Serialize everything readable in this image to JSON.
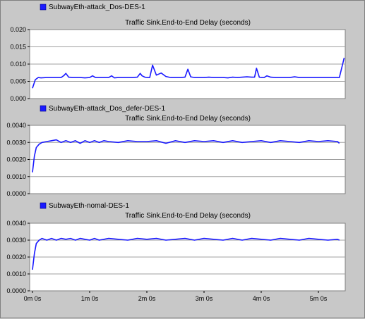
{
  "chart_data": [
    {
      "type": "line",
      "legend": "SubwayEth-attack_Dos-DES-1",
      "title": "Traffic Sink.End-to-End Delay (seconds)",
      "ylim": [
        0,
        0.02
      ],
      "yticks": [
        "0.000",
        "0.005",
        "0.010",
        "0.015",
        "0.020"
      ],
      "xlim": [
        0,
        330
      ],
      "series_color": "#1a1aff",
      "x": [
        0,
        3,
        6,
        9,
        15,
        20,
        25,
        30,
        33,
        35,
        38,
        42,
        47,
        50,
        55,
        60,
        63,
        66,
        70,
        75,
        80,
        83,
        86,
        90,
        95,
        100,
        105,
        110,
        113,
        115,
        118,
        120,
        123,
        126,
        130,
        135,
        140,
        145,
        150,
        155,
        160,
        163,
        166,
        170,
        175,
        180,
        185,
        190,
        195,
        200,
        205,
        210,
        215,
        220,
        225,
        230,
        233,
        235,
        238,
        240,
        243,
        246,
        250,
        255,
        260,
        265,
        270,
        275,
        280,
        285,
        290,
        295,
        300,
        305,
        310,
        315,
        320,
        322,
        327
      ],
      "values": [
        0.003,
        0.0055,
        0.0061,
        0.006,
        0.0061,
        0.0061,
        0.0061,
        0.0061,
        0.0067,
        0.0073,
        0.0062,
        0.0061,
        0.0061,
        0.0061,
        0.006,
        0.0061,
        0.0066,
        0.0061,
        0.0061,
        0.0061,
        0.0061,
        0.0066,
        0.006,
        0.0061,
        0.0061,
        0.0061,
        0.0061,
        0.0062,
        0.0073,
        0.0066,
        0.0062,
        0.0061,
        0.0061,
        0.0097,
        0.0068,
        0.0074,
        0.0064,
        0.0061,
        0.0061,
        0.0061,
        0.0062,
        0.0085,
        0.0063,
        0.0061,
        0.0061,
        0.0061,
        0.0062,
        0.0061,
        0.0061,
        0.0061,
        0.006,
        0.0062,
        0.0061,
        0.0062,
        0.0063,
        0.0062,
        0.0062,
        0.0088,
        0.0062,
        0.0061,
        0.0061,
        0.0066,
        0.0062,
        0.0061,
        0.0061,
        0.0061,
        0.0061,
        0.0063,
        0.0061,
        0.0061,
        0.0061,
        0.0061,
        0.0061,
        0.0061,
        0.0061,
        0.0061,
        0.0061,
        0.0061,
        0.0118
      ]
    },
    {
      "type": "line",
      "legend": "SubwayEth-attack_Dos_defer-DES-1",
      "title": "Traffic Sink.End-to-End Delay (seconds)",
      "ylim": [
        0,
        0.004
      ],
      "yticks": [
        "0.0000",
        "0.0010",
        "0.0020",
        "0.0030",
        "0.0040"
      ],
      "xlim": [
        0,
        330
      ],
      "series_color": "#1a1aff",
      "x": [
        0,
        2,
        4,
        7,
        10,
        15,
        20,
        25,
        30,
        35,
        40,
        45,
        50,
        55,
        60,
        65,
        70,
        75,
        80,
        90,
        100,
        110,
        120,
        130,
        140,
        150,
        160,
        170,
        180,
        190,
        200,
        210,
        220,
        230,
        240,
        250,
        260,
        270,
        280,
        290,
        300,
        310,
        320,
        322
      ],
      "values": [
        0.00125,
        0.0022,
        0.0027,
        0.0029,
        0.003,
        0.00305,
        0.0031,
        0.00315,
        0.003,
        0.0031,
        0.003,
        0.0031,
        0.00295,
        0.0031,
        0.003,
        0.0031,
        0.003,
        0.0031,
        0.00305,
        0.003,
        0.0031,
        0.00305,
        0.00305,
        0.0031,
        0.00295,
        0.0031,
        0.003,
        0.0031,
        0.00305,
        0.0031,
        0.003,
        0.0031,
        0.003,
        0.00305,
        0.0031,
        0.003,
        0.0031,
        0.00305,
        0.003,
        0.0031,
        0.00305,
        0.0031,
        0.00305,
        0.00295
      ]
    },
    {
      "type": "line",
      "legend": "SubwayEth-nomal-DES-1",
      "title": "Traffic Sink.End-to-End Delay (seconds)",
      "ylim": [
        0,
        0.004
      ],
      "yticks": [
        "0.0000",
        "0.0010",
        "0.0020",
        "0.0030",
        "0.0040"
      ],
      "xlim": [
        0,
        330
      ],
      "xticks": [
        "0m 0s",
        "1m 0s",
        "2m 0s",
        "3m 0s",
        "4m 0s",
        "5m 0s"
      ],
      "xtick_values": [
        0,
        60,
        120,
        180,
        240,
        300
      ],
      "series_color": "#1a1aff",
      "x": [
        0,
        2,
        4,
        7,
        10,
        15,
        20,
        25,
        30,
        35,
        40,
        45,
        50,
        55,
        60,
        65,
        70,
        80,
        90,
        100,
        110,
        120,
        130,
        140,
        150,
        160,
        170,
        180,
        190,
        200,
        210,
        220,
        230,
        240,
        250,
        260,
        270,
        280,
        290,
        300,
        310,
        320,
        322
      ],
      "values": [
        0.00125,
        0.0022,
        0.0028,
        0.003,
        0.0031,
        0.003,
        0.0031,
        0.003,
        0.0031,
        0.00305,
        0.0031,
        0.003,
        0.0031,
        0.00305,
        0.003,
        0.0031,
        0.003,
        0.0031,
        0.00305,
        0.003,
        0.0031,
        0.00305,
        0.0031,
        0.003,
        0.00305,
        0.0031,
        0.003,
        0.0031,
        0.00305,
        0.003,
        0.0031,
        0.003,
        0.0031,
        0.00305,
        0.003,
        0.0031,
        0.00305,
        0.003,
        0.0031,
        0.00305,
        0.003,
        0.00305,
        0.003
      ]
    }
  ]
}
